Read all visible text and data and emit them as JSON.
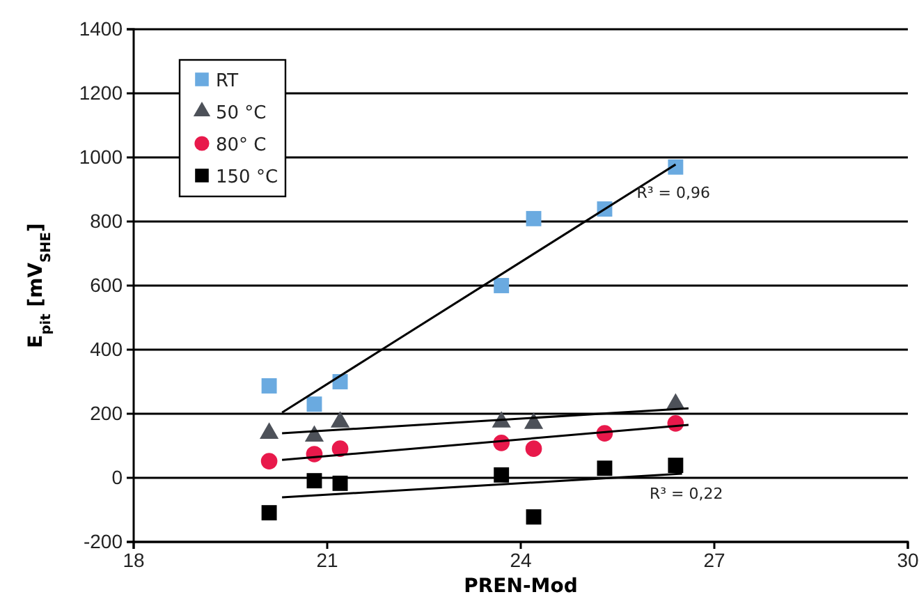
{
  "chart_data": {
    "type": "scatter",
    "xlabel": "PREN-Mod",
    "ylabel": "E$_{pit}$ [mV$_{SHE}$]",
    "xlim": [
      18,
      30
    ],
    "xticks": [
      18,
      21,
      24,
      27,
      30
    ],
    "ylim": [
      -200,
      1400
    ],
    "yticks": [
      -200,
      0,
      200,
      400,
      600,
      800,
      1000,
      1200,
      1400
    ],
    "grid": "y",
    "legend": "top left",
    "x": [
      20.1,
      20.8,
      21.2,
      23.7,
      24.2,
      25.3,
      26.4
    ],
    "series": [
      {
        "name": "RT",
        "color": "#6aaae0",
        "marker": "square",
        "values": [
          287,
          230,
          300,
          600,
          809,
          839,
          970
        ]
      },
      {
        "name": "50 °C",
        "color": "#4d5159",
        "marker": "triangle",
        "values": [
          139,
          130,
          174,
          174,
          170,
          null,
          230
        ]
      },
      {
        "name": "80° C",
        "color": "#e8194b",
        "marker": "circle",
        "values": [
          52,
          74,
          91,
          109,
          91,
          139,
          170
        ]
      },
      {
        "name": "150 °C",
        "color": "#000000",
        "marker": "square",
        "values": [
          -109,
          -9,
          -17,
          9,
          -122,
          30,
          39
        ]
      },
      {
        "type": "line",
        "color": "#000000",
        "x": [
          20.3,
          26.4
        ],
        "values": [
          204,
          978
        ]
      },
      {
        "type": "line",
        "color": "#000000",
        "x": [
          20.3,
          26.6
        ],
        "values": [
          139,
          217
        ]
      },
      {
        "type": "line",
        "color": "#000000",
        "x": [
          20.3,
          26.6
        ],
        "values": [
          56,
          165
        ]
      },
      {
        "type": "line",
        "color": "#000000",
        "x": [
          20.3,
          26.5
        ],
        "values": [
          -61,
          13
        ]
      }
    ],
    "annotations": [
      {
        "text": "R³ = 0,96",
        "x": 26.4,
        "y": 978
      },
      {
        "text": "R³ = 0,22",
        "x": 26.6,
        "y": 39
      }
    ]
  }
}
